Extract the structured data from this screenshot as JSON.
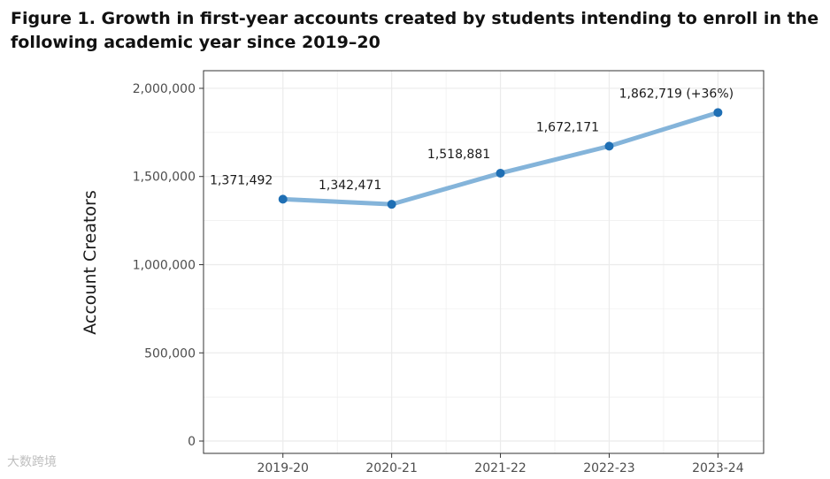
{
  "figure": {
    "title": "Figure 1. Growth in first-year accounts created by students intending to enroll in the following academic year since 2019–20"
  },
  "watermark": {
    "text": "大数跨境"
  },
  "chart_data": {
    "type": "line",
    "categories": [
      "2019-20",
      "2020-21",
      "2021-22",
      "2022-23",
      "2023-24"
    ],
    "values": [
      1371492,
      1342471,
      1518881,
      1672171,
      1862719
    ],
    "data_labels": [
      "1,371,492",
      "1,342,471",
      "1,518,881",
      "1,672,171",
      "1,862,719 (+36%)"
    ],
    "ylabel": "Account Creators",
    "xlabel": "",
    "ylim": [
      -70000,
      2100000
    ],
    "yticks": [
      0,
      500000,
      1000000,
      1500000,
      2000000
    ],
    "ytick_labels": [
      "0",
      "500,000",
      "1,000,000",
      "1,500,000",
      "2,000,000"
    ],
    "grid": true,
    "line_color": "#84b4da",
    "point_color": "#1f6fb4",
    "grid_color": "#ebebeb",
    "border_color": "#333333"
  }
}
